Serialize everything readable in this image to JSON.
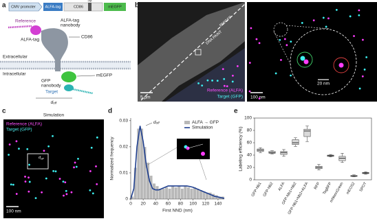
{
  "panel_labels": [
    "a",
    "b",
    "c",
    "d",
    "e"
  ],
  "panel_a": {
    "promoter": "CMV promoter",
    "tag": "ALFA-tag",
    "protein": "CD86",
    "tm": "TM",
    "fluor": "mEGFP",
    "reference": "Reference",
    "alfa_nanobody": [
      "ALFA-tag",
      "nanobody"
    ],
    "alfa_tag": "ALFA-tag",
    "cd86": "CD86",
    "extracellular": "Extracellular",
    "intracellular": "Intracellular",
    "megfp": "mEGFP",
    "gfp_nanobody": [
      "GFP",
      "nanobody"
    ],
    "target": "Target",
    "distance": "d",
    "distance_sub": "off"
  },
  "panel_b": {
    "membrane": "PM/GFP",
    "paint": "DNA PAINT",
    "legend": [
      "Reference (ALFA)",
      "Target (GFP)"
    ],
    "scale_left": "5 µm",
    "scale_zoom": "20 nm",
    "scale_right": "100 nm"
  },
  "panel_c": {
    "title": "Simulation",
    "legend": [
      "Reference (ALFA)",
      "Target (GFP)"
    ],
    "distance": "d",
    "distance_sub": "off",
    "scale": "100 nm"
  },
  "chart_data": [
    {
      "type": "histogram",
      "name": "ALFA → GFP",
      "color": "#b8b8b8",
      "bins": [
        0,
        5,
        10,
        15,
        20,
        25,
        30,
        35,
        40,
        45,
        50,
        55,
        60,
        65,
        70,
        75,
        80,
        85,
        90,
        95,
        100,
        105,
        110,
        115,
        120,
        125,
        130,
        135,
        140,
        145,
        150
      ],
      "counts": [
        0.001,
        0.012,
        0.027,
        0.027,
        0.02,
        0.014,
        0.009,
        0.006,
        0.005,
        0.004,
        0.004,
        0.0045,
        0.004,
        0.005,
        0.0045,
        0.005,
        0.004,
        0.005,
        0.0045,
        0.004,
        0.0045,
        0.004,
        0.0035,
        0.003,
        0.0025,
        0.0025,
        0.002,
        0.0015,
        0.001,
        0.001
      ],
      "series": [
        {
          "name": "Simulation",
          "color": "#1f3f8f",
          "x": [
            0,
            5,
            10,
            15,
            20,
            25,
            30,
            35,
            40,
            45,
            50,
            55,
            60,
            65,
            70,
            75,
            80,
            85,
            90,
            95,
            100,
            105,
            110,
            115,
            120,
            125,
            130,
            135,
            140,
            145,
            150
          ],
          "values": [
            0,
            0.004,
            0.02,
            0.028,
            0.022,
            0.013,
            0.007,
            0.004,
            0.0035,
            0.0035,
            0.004,
            0.0045,
            0.005,
            0.005,
            0.005,
            0.005,
            0.005,
            0.005,
            0.005,
            0.0048,
            0.0045,
            0.004,
            0.0035,
            0.003,
            0.0025,
            0.002,
            0.0015,
            0.001,
            0.0008,
            0.0005,
            0.0003
          ]
        }
      ],
      "xlim": [
        0,
        150
      ],
      "xticks": [
        0,
        20,
        40,
        60,
        80,
        100,
        120,
        140
      ],
      "ylim": [
        0,
        0.031
      ],
      "yticks": [
        0,
        0.01,
        0.02,
        0.03
      ],
      "xlabel": "First NND (nm)",
      "ylabel": "Normalized frequency",
      "annotation": "d",
      "annotation_sub": "off"
    },
    {
      "type": "box",
      "color": "#d9d9d9",
      "categories": [
        "GFP-Nb1",
        "GFP-Nb2",
        "ALFA",
        "GFP-Nb1+Nb2",
        "GFP-Nb1+Nb2+ALFA",
        "RFP",
        "TagBFP",
        "mNeonGreen",
        "mEOS2",
        "SPOT"
      ],
      "min": [
        44,
        42,
        38,
        54,
        62,
        16,
        37,
        28,
        5,
        9
      ],
      "q1": [
        46,
        43,
        41,
        57,
        70,
        18,
        38,
        31,
        5.5,
        10
      ],
      "median": [
        48,
        44,
        44,
        60,
        79,
        20,
        39,
        35,
        6,
        11
      ],
      "q3": [
        50,
        46,
        46,
        65,
        82,
        22,
        40,
        38,
        7,
        12
      ],
      "max": [
        52,
        47,
        49,
        68,
        87,
        25,
        41,
        43,
        8,
        13
      ],
      "ylim": [
        0,
        100
      ],
      "yticks": [
        0,
        20,
        40,
        60,
        80,
        100
      ],
      "ylabel": "Labeling efficiency (%)"
    }
  ]
}
